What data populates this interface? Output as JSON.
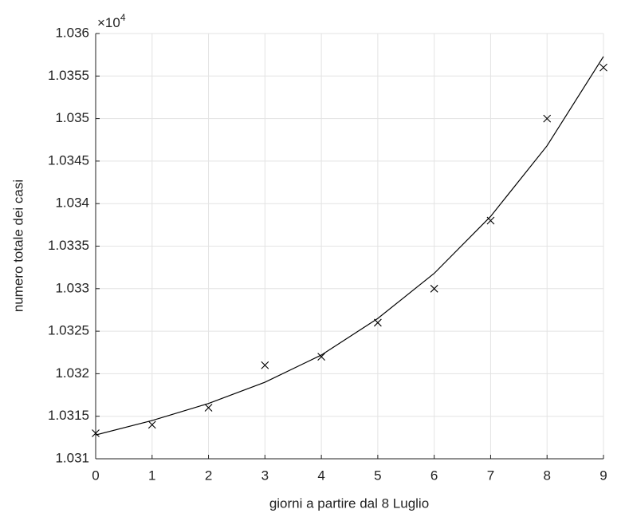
{
  "chart_data": {
    "type": "scatter",
    "x_label": "giorni a partire dal 8 Luglio",
    "y_label": "numero totale dei casi",
    "y_multiplier": {
      "base": "×10",
      "exponent": "4"
    },
    "x": [
      0,
      1,
      2,
      3,
      4,
      5,
      6,
      7,
      8,
      9
    ],
    "series": [
      {
        "type": "scatter",
        "marker": "x",
        "color": "#000000",
        "values": [
          1.0313,
          1.0314,
          1.0316,
          1.0321,
          1.0322,
          1.0326,
          1.033,
          1.0338,
          1.035,
          1.0356
        ]
      },
      {
        "type": "line",
        "color": "#000000",
        "values": [
          1.03128,
          1.03145,
          1.03165,
          1.0319,
          1.03222,
          1.03265,
          1.03318,
          1.03385,
          1.03468,
          1.03573
        ]
      }
    ],
    "xlim": [
      0,
      9
    ],
    "xticks": [
      0,
      1,
      2,
      3,
      4,
      5,
      6,
      7,
      8,
      9
    ],
    "ylim": [
      1.031,
      1.036
    ],
    "yticks": [
      1.031,
      1.0315,
      1.032,
      1.0325,
      1.033,
      1.0335,
      1.034,
      1.0345,
      1.035,
      1.0355,
      1.036
    ],
    "grid": true
  }
}
